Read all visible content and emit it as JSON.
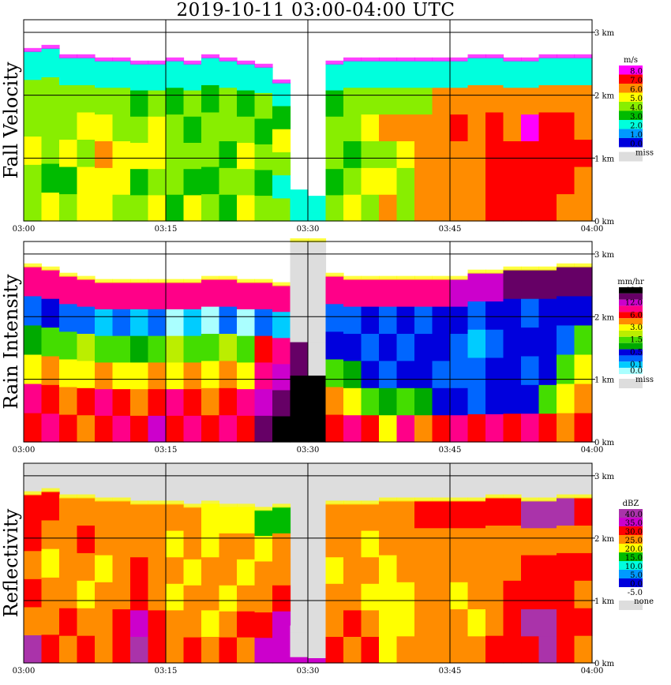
{
  "title": "2019-10-11   03:00-04:00 UTC",
  "x_ticks": [
    "03:00",
    "03:15",
    "03:30",
    "03:45",
    "04:00"
  ],
  "y_ticks": [
    "0 km",
    "1 km",
    "2 km",
    "3 km"
  ],
  "chart_data": [
    {
      "type": "heatmap",
      "title": "Fall Velocity",
      "unit": "m/s",
      "x_range": [
        "03:00",
        "04:00"
      ],
      "y_range_km": [
        0,
        3.2
      ],
      "grid": true,
      "legend_placement": "right",
      "colorbar": [
        {
          "label": "8.0",
          "color": "#ff00ff"
        },
        {
          "label": "7.0",
          "color": "#ff0000"
        },
        {
          "label": "6.0",
          "color": "#ff8c00"
        },
        {
          "label": "5.0",
          "color": "#ffff00"
        },
        {
          "label": "4.0",
          "color": "#88ee00"
        },
        {
          "label": "3.0",
          "color": "#00bb00"
        },
        {
          "label": "2.0",
          "color": "#00ffdd"
        },
        {
          "label": "1.0",
          "color": "#0099ff"
        },
        {
          "label": "0.0",
          "color": "#0000dd"
        }
      ],
      "missing": {
        "label": "miss",
        "color": "#dddddd"
      },
      "bg_missing": false,
      "top_km": [
        2.7,
        2.75,
        2.6,
        2.6,
        2.55,
        2.55,
        2.5,
        2.5,
        2.55,
        2.5,
        2.6,
        2.55,
        2.5,
        2.45,
        2.2,
        0.5,
        0.4,
        2.5,
        2.55,
        2.55,
        2.55,
        2.55,
        2.55,
        2.55,
        2.55,
        2.6,
        2.6,
        2.55,
        2.55,
        2.6,
        2.6,
        2.6
      ],
      "columns": [
        [
          "#88ee00",
          "#88ee00",
          "#ffff00",
          "#88ee00",
          "#88ee00",
          "#00ffdd"
        ],
        [
          "#ffff00",
          "#00bb00",
          "#88ee00",
          "#88ee00",
          "#88ee00",
          "#00ffdd"
        ],
        [
          "#88ee00",
          "#00bb00",
          "#ffff00",
          "#88ee00",
          "#88ee00",
          "#00ffdd"
        ],
        [
          "#ffff00",
          "#ffff00",
          "#88ee00",
          "#ffff00",
          "#88ee00",
          "#00ffdd"
        ],
        [
          "#ffff00",
          "#ffff00",
          "#ff8c00",
          "#ffff00",
          "#88ee00",
          "#00ffdd"
        ],
        [
          "#88ee00",
          "#ffff00",
          "#ffff00",
          "#88ee00",
          "#88ee00",
          "#00ffdd"
        ],
        [
          "#88ee00",
          "#00bb00",
          "#ffff00",
          "#88ee00",
          "#00bb00",
          "#00ffdd"
        ],
        [
          "#ffff00",
          "#88ee00",
          "#ffff00",
          "#ffff00",
          "#88ee00",
          "#00ffdd"
        ],
        [
          "#00bb00",
          "#88ee00",
          "#88ee00",
          "#88ee00",
          "#00bb00",
          "#00ffdd"
        ],
        [
          "#ffff00",
          "#00bb00",
          "#88ee00",
          "#00bb00",
          "#88ee00",
          "#00ffdd"
        ],
        [
          "#88ee00",
          "#00bb00",
          "#88ee00",
          "#88ee00",
          "#00bb00",
          "#00ffdd"
        ],
        [
          "#00bb00",
          "#88ee00",
          "#00bb00",
          "#88ee00",
          "#88ee00",
          "#00ffdd"
        ],
        [
          "#ffff00",
          "#88ee00",
          "#ffff00",
          "#88ee00",
          "#00bb00",
          "#00ffdd"
        ],
        [
          "#88ee00",
          "#00bb00",
          "#88ee00",
          "#00bb00",
          "#88ee00",
          "#00ffdd"
        ],
        [
          "#88ee00",
          "#00ffdd",
          "#88ee00",
          "#ffff00",
          "#00bb00",
          "#00ffdd"
        ],
        [
          "#00ffdd",
          "#00ffdd",
          "#00ffdd",
          "#00ffdd",
          "#00ffdd",
          "#00ffdd"
        ],
        [
          "#00ffdd",
          "#00ffdd",
          "#00ffdd",
          "#00ffdd",
          "#00ffdd",
          "#00ffdd"
        ],
        [
          "#88ee00",
          "#00bb00",
          "#88ee00",
          "#88ee00",
          "#00bb00",
          "#00ffdd"
        ],
        [
          "#ffff00",
          "#88ee00",
          "#00bb00",
          "#88ee00",
          "#88ee00",
          "#00ffdd"
        ],
        [
          "#88ee00",
          "#ffff00",
          "#88ee00",
          "#ffff00",
          "#88ee00",
          "#00ffdd"
        ],
        [
          "#ff8c00",
          "#ffff00",
          "#88ee00",
          "#ff8c00",
          "#88ee00",
          "#00ffdd"
        ],
        [
          "#88ee00",
          "#88ee00",
          "#ffff00",
          "#ff8c00",
          "#88ee00",
          "#00ffdd"
        ],
        [
          "#ff8c00",
          "#ff8c00",
          "#ff8c00",
          "#ff8c00",
          "#88ee00",
          "#00ffdd"
        ],
        [
          "#ff8c00",
          "#ff8c00",
          "#ff8c00",
          "#ff8c00",
          "#ff8c00",
          "#00ffdd"
        ],
        [
          "#ff8c00",
          "#ff8c00",
          "#ff8c00",
          "#ff0000",
          "#ff8c00",
          "#00ffdd"
        ],
        [
          "#ff8c00",
          "#ff8c00",
          "#ff8c00",
          "#ff8c00",
          "#ff8c00",
          "#00ffdd"
        ],
        [
          "#ff0000",
          "#ff0000",
          "#ff0000",
          "#ff0000",
          "#ff8c00",
          "#00ffdd"
        ],
        [
          "#ff0000",
          "#ff0000",
          "#ff0000",
          "#ff8c00",
          "#ff8c00",
          "#00ffdd"
        ],
        [
          "#ff0000",
          "#ff0000",
          "#ff0000",
          "#ff00ff",
          "#ff8c00",
          "#00ffdd"
        ],
        [
          "#ff0000",
          "#ff0000",
          "#ff0000",
          "#ff0000",
          "#ff8c00",
          "#00ffdd"
        ],
        [
          "#ff8c00",
          "#ff0000",
          "#ff0000",
          "#ff0000",
          "#ff8c00",
          "#00ffdd"
        ],
        [
          "#ff8c00",
          "#ff8c00",
          "#ff0000",
          "#ff8c00",
          "#ff8c00",
          "#00ffdd"
        ]
      ]
    },
    {
      "type": "heatmap",
      "title": "Rain Intensity",
      "unit": "mm/hr",
      "x_range": [
        "03:00",
        "04:00"
      ],
      "y_range_km": [
        0,
        3.2
      ],
      "grid": true,
      "legend_placement": "right",
      "colorbar": [
        {
          "label": "48.0",
          "color": "#000000"
        },
        {
          "label": "",
          "color": "#660066"
        },
        {
          "label": "12.0",
          "color": "#cc00cc"
        },
        {
          "label": "",
          "color": "#ff0088"
        },
        {
          "label": "6.0",
          "color": "#ff0000"
        },
        {
          "label": "",
          "color": "#ff8c00"
        },
        {
          "label": "3.0",
          "color": "#ffff00"
        },
        {
          "label": "",
          "color": "#bbee00"
        },
        {
          "label": "1.5",
          "color": "#44dd00"
        },
        {
          "label": "",
          "color": "#00aa00"
        },
        {
          "label": "0.5",
          "color": "#0000dd"
        },
        {
          "label": "",
          "color": "#0066ff"
        },
        {
          "label": "0.1",
          "color": "#00ccff"
        },
        {
          "label": "0.0",
          "color": "#aaffff"
        }
      ],
      "missing": {
        "label": "miss",
        "color": "#dddddd"
      },
      "bg_missing": false,
      "top_km": [
        2.8,
        2.75,
        2.65,
        2.6,
        2.55,
        2.55,
        2.55,
        2.55,
        2.55,
        2.55,
        2.6,
        2.6,
        2.55,
        2.55,
        2.5,
        3.2,
        3.2,
        2.65,
        2.6,
        2.6,
        2.6,
        2.6,
        2.6,
        2.6,
        2.6,
        2.7,
        2.7,
        2.75,
        2.75,
        2.75,
        2.8,
        2.8
      ],
      "columns": [
        [
          "#ff0000",
          "#ff0088",
          "#ffff00",
          "#00aa00",
          "#0066ff",
          "#ff0088"
        ],
        [
          "#ff0088",
          "#ff0000",
          "#ff8c00",
          "#44dd00",
          "#0000dd",
          "#ff0088"
        ],
        [
          "#ff0000",
          "#ff8c00",
          "#ffff00",
          "#44dd00",
          "#0066ff",
          "#ff0088"
        ],
        [
          "#ff8c00",
          "#ff0000",
          "#ffff00",
          "#bbee00",
          "#0066ff",
          "#ff0088"
        ],
        [
          "#ff0000",
          "#ff0088",
          "#ff8c00",
          "#44dd00",
          "#00ccff",
          "#ff0088"
        ],
        [
          "#ff0088",
          "#ff0000",
          "#ffff00",
          "#44dd00",
          "#0066ff",
          "#ff0088"
        ],
        [
          "#ff0000",
          "#ff8c00",
          "#ffff00",
          "#00aa00",
          "#00ccff",
          "#ff0088"
        ],
        [
          "#cc00cc",
          "#ff0000",
          "#ff8c00",
          "#44dd00",
          "#0066ff",
          "#ff0088"
        ],
        [
          "#ff0000",
          "#ff0088",
          "#ffff00",
          "#bbee00",
          "#aaffff",
          "#ff0088"
        ],
        [
          "#ff0088",
          "#ff0000",
          "#ff8c00",
          "#44dd00",
          "#00ccff",
          "#ff0088"
        ],
        [
          "#ff0000",
          "#ff8c00",
          "#ffff00",
          "#44dd00",
          "#aaffff",
          "#ff0088"
        ],
        [
          "#ff0088",
          "#ff0000",
          "#ff8c00",
          "#bbee00",
          "#0066ff",
          "#ff0088"
        ],
        [
          "#ff0000",
          "#ff0088",
          "#ffff00",
          "#44dd00",
          "#aaffff",
          "#ff0088"
        ],
        [
          "#660066",
          "#cc00cc",
          "#ff0088",
          "#ff0000",
          "#0066ff",
          "#ff0088"
        ],
        [
          "#000000",
          "#660066",
          "#cc00cc",
          "#ff0088",
          "#00ccff",
          "#ff0088"
        ],
        [
          "#000000",
          "#000000",
          "#660066",
          "#dddddd",
          "#dddddd",
          "#dddddd"
        ],
        [
          "#000000",
          "#000000",
          "#dddddd",
          "#dddddd",
          "#dddddd",
          "#dddddd"
        ],
        [
          "#ff0000",
          "#ff8c00",
          "#44dd00",
          "#0000dd",
          "#0066ff",
          "#ff0088"
        ],
        [
          "#ff0088",
          "#ffff00",
          "#00aa00",
          "#0000dd",
          "#0066ff",
          "#ff0088"
        ],
        [
          "#ff0000",
          "#44dd00",
          "#0000dd",
          "#0066ff",
          "#0000dd",
          "#ff0088"
        ],
        [
          "#ffff00",
          "#00aa00",
          "#0066ff",
          "#0000dd",
          "#0066ff",
          "#ff0088"
        ],
        [
          "#ff0088",
          "#44dd00",
          "#0000dd",
          "#0066ff",
          "#0000dd",
          "#ff0088"
        ],
        [
          "#ff8c00",
          "#00aa00",
          "#0000dd",
          "#0000dd",
          "#0066ff",
          "#ff0088"
        ],
        [
          "#ff0000",
          "#0000dd",
          "#0066ff",
          "#0000dd",
          "#0000dd",
          "#ff0088"
        ],
        [
          "#ff0088",
          "#0000dd",
          "#0066ff",
          "#0066ff",
          "#0000dd",
          "#cc00cc"
        ],
        [
          "#ff0000",
          "#0066ff",
          "#0066ff",
          "#00ccff",
          "#0066ff",
          "#cc00cc"
        ],
        [
          "#ff0088",
          "#0000dd",
          "#0000dd",
          "#0066ff",
          "#0000dd",
          "#cc00cc"
        ],
        [
          "#ff0000",
          "#0000dd",
          "#0000dd",
          "#0000dd",
          "#0000dd",
          "#660066"
        ],
        [
          "#ff0088",
          "#0000dd",
          "#0066ff",
          "#0000dd",
          "#0066ff",
          "#660066"
        ],
        [
          "#ff0000",
          "#44dd00",
          "#0000dd",
          "#0000dd",
          "#0000dd",
          "#660066"
        ],
        [
          "#ff8c00",
          "#ffff00",
          "#44dd00",
          "#0066ff",
          "#0000dd",
          "#660066"
        ],
        [
          "#ff0000",
          "#ff8c00",
          "#ffff00",
          "#44dd00",
          "#0000dd",
          "#660066"
        ]
      ]
    },
    {
      "type": "heatmap",
      "title": "Reflectivity",
      "unit": "dBZ",
      "x_range": [
        "03:00",
        "04:00"
      ],
      "y_range_km": [
        0,
        3.2
      ],
      "grid": true,
      "legend_placement": "right",
      "colorbar": [
        {
          "label": "40.0",
          "color": "#aa33aa"
        },
        {
          "label": "35.0",
          "color": "#cc00cc"
        },
        {
          "label": "30.0",
          "color": "#ff0000"
        },
        {
          "label": "25.0",
          "color": "#ff8c00"
        },
        {
          "label": "20.0",
          "color": "#ffff00"
        },
        {
          "label": "15.0",
          "color": "#00bb00"
        },
        {
          "label": "10.0",
          "color": "#00ffdd"
        },
        {
          "label": "5.0",
          "color": "#0099ff"
        },
        {
          "label": "0.0",
          "color": "#0000dd"
        },
        {
          "label": "-5.0",
          "color": "#ffffff"
        }
      ],
      "missing": {
        "label": "none",
        "color": "#dddddd"
      },
      "bg_missing": true,
      "top_km": [
        2.7,
        2.75,
        2.65,
        2.65,
        2.6,
        2.6,
        2.55,
        2.55,
        2.55,
        2.5,
        2.55,
        2.5,
        2.5,
        2.45,
        2.5,
        0.6,
        0.5,
        2.55,
        2.55,
        2.55,
        2.6,
        2.6,
        2.6,
        2.6,
        2.6,
        2.6,
        2.65,
        2.65,
        2.6,
        2.6,
        2.65,
        2.65
      ],
      "columns": [
        [
          "#aa33aa",
          "#ff8c00",
          "#ff0000",
          "#ff8c00",
          "#ff0000",
          "#ff0000"
        ],
        [
          "#ff0000",
          "#ff8c00",
          "#ff8c00",
          "#ffff00",
          "#ff8c00",
          "#ff0000"
        ],
        [
          "#ff8c00",
          "#ff0000",
          "#ff8c00",
          "#ff8c00",
          "#ff8c00",
          "#ff8c00"
        ],
        [
          "#ff0000",
          "#ff8c00",
          "#ffff00",
          "#ff8c00",
          "#ff0000",
          "#ff8c00"
        ],
        [
          "#ff8c00",
          "#ff8c00",
          "#ff8c00",
          "#ffff00",
          "#ff8c00",
          "#ff8c00"
        ],
        [
          "#ff0000",
          "#ff0000",
          "#ff8c00",
          "#ff8c00",
          "#ff8c00",
          "#ff8c00"
        ],
        [
          "#aa33aa",
          "#cc00cc",
          "#ff0000",
          "#ff0000",
          "#ff8c00",
          "#ff8c00"
        ],
        [
          "#ff0000",
          "#ff0000",
          "#ff8c00",
          "#ff8c00",
          "#ff8c00",
          "#ff8c00"
        ],
        [
          "#ff8c00",
          "#ff8c00",
          "#ffff00",
          "#ff8c00",
          "#ffff00",
          "#ff8c00"
        ],
        [
          "#ff0000",
          "#ff8c00",
          "#ff8c00",
          "#ffff00",
          "#ff8c00",
          "#ff8c00"
        ],
        [
          "#ff8c00",
          "#ffff00",
          "#ff8c00",
          "#ff8c00",
          "#ffff00",
          "#ffff00"
        ],
        [
          "#ff0000",
          "#ff8c00",
          "#ffff00",
          "#ff8c00",
          "#ff8c00",
          "#ffff00"
        ],
        [
          "#ff8c00",
          "#ff0000",
          "#ff8c00",
          "#ffff00",
          "#ff8c00",
          "#ffff00"
        ],
        [
          "#cc00cc",
          "#ff0000",
          "#ff8c00",
          "#ff8c00",
          "#ffff00",
          "#00bb00"
        ],
        [
          "#cc00cc",
          "#cc00cc",
          "#ff0000",
          "#ff8c00",
          "#ff8c00",
          "#00bb00"
        ],
        [
          "#cc00cc",
          "#dddddd",
          "#dddddd",
          "#dddddd",
          "#dddddd",
          "#dddddd"
        ],
        [
          "#cc00cc",
          "#dddddd",
          "#dddddd",
          "#dddddd",
          "#dddddd",
          "#dddddd"
        ],
        [
          "#ff0000",
          "#ff8c00",
          "#ff8c00",
          "#ffff00",
          "#ff8c00",
          "#ff8c00"
        ],
        [
          "#ff8c00",
          "#ff0000",
          "#ff8c00",
          "#ff8c00",
          "#ff8c00",
          "#ff8c00"
        ],
        [
          "#ff0000",
          "#ff8c00",
          "#ffff00",
          "#ff8c00",
          "#ffff00",
          "#ff8c00"
        ],
        [
          "#ffff00",
          "#ffff00",
          "#ffff00",
          "#ffff00",
          "#ff8c00",
          "#ff8c00"
        ],
        [
          "#ff8c00",
          "#ffff00",
          "#ffff00",
          "#ff8c00",
          "#ff8c00",
          "#ff8c00"
        ],
        [
          "#ff8c00",
          "#ff8c00",
          "#ff8c00",
          "#ff8c00",
          "#ff8c00",
          "#ff0000"
        ],
        [
          "#ff8c00",
          "#ff8c00",
          "#ff8c00",
          "#ff8c00",
          "#ff8c00",
          "#ff0000"
        ],
        [
          "#ff8c00",
          "#ff8c00",
          "#ffff00",
          "#ff8c00",
          "#ff8c00",
          "#ff0000"
        ],
        [
          "#ff8c00",
          "#ffff00",
          "#ff8c00",
          "#ff8c00",
          "#ff8c00",
          "#ff0000"
        ],
        [
          "#ff0000",
          "#ff8c00",
          "#ff8c00",
          "#ff8c00",
          "#ff8c00",
          "#ff0000"
        ],
        [
          "#ff0000",
          "#ff0000",
          "#ff0000",
          "#ff8c00",
          "#ff8c00",
          "#ff0000"
        ],
        [
          "#ff0000",
          "#aa33aa",
          "#ff0000",
          "#ff0000",
          "#ff8c00",
          "#aa33aa"
        ],
        [
          "#aa33aa",
          "#aa33aa",
          "#ff0000",
          "#ff0000",
          "#ff8c00",
          "#aa33aa"
        ],
        [
          "#ff0000",
          "#ff0000",
          "#ff0000",
          "#ff0000",
          "#ff8c00",
          "#aa33aa"
        ],
        [
          "#ff8c00",
          "#ff0000",
          "#ff8c00",
          "#ff0000",
          "#ff8c00",
          "#ff0000"
        ]
      ]
    }
  ]
}
